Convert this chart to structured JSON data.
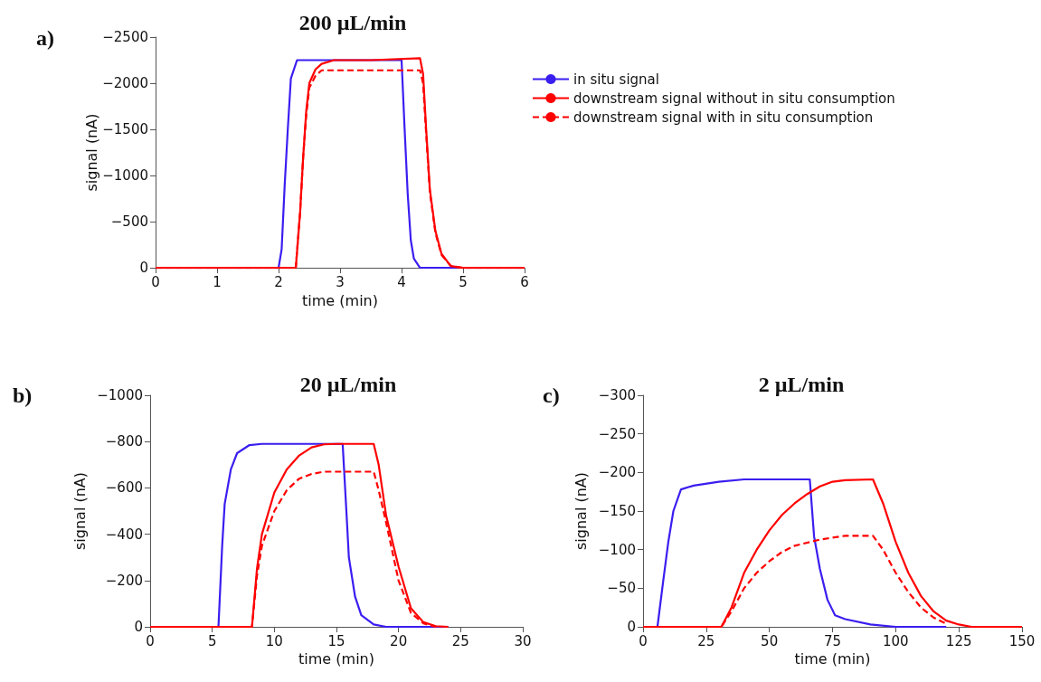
{
  "chart_data": [
    {
      "type": "line",
      "title": "200 µL/min",
      "xlabel": "time (min)",
      "ylabel": "signal (nA)",
      "annotations": [
        "a)"
      ],
      "xlim": [
        0,
        6
      ],
      "xticks": [
        0,
        1,
        2,
        3,
        4,
        5,
        6
      ],
      "ylim": [
        0,
        -2500
      ],
      "yticks": [
        {
          "value": 0,
          "label": "0"
        },
        {
          "value": -500,
          "label": "−500"
        },
        {
          "value": -1000,
          "label": "−1000"
        },
        {
          "value": -1500,
          "label": "−1500"
        },
        {
          "value": -2000,
          "label": "−2000"
        },
        {
          "value": -2500,
          "label": "−2500"
        }
      ],
      "grid": false,
      "legend": "right",
      "marker": "none",
      "series": [
        {
          "name": "in situ signal",
          "color": "#3a1ef0",
          "line_style": "solid",
          "x": [
            0,
            2.0,
            2.05,
            2.1,
            2.15,
            2.2,
            2.3,
            2.5,
            4.0,
            4.05,
            4.1,
            4.15,
            4.2,
            4.3,
            4.5,
            6
          ],
          "values": [
            0,
            0,
            -200,
            -900,
            -1500,
            -2050,
            -2250,
            -2250,
            -2250,
            -1500,
            -800,
            -300,
            -100,
            0,
            0,
            0
          ]
        },
        {
          "name": "downstream signal without in situ consumption",
          "color": "#ff0000",
          "line_style": "solid",
          "x": [
            0,
            2.28,
            2.35,
            2.4,
            2.45,
            2.5,
            2.6,
            2.7,
            2.9,
            3.5,
            4.3,
            4.35,
            4.4,
            4.46,
            4.55,
            4.65,
            4.8,
            5.0,
            6
          ],
          "values": [
            0,
            0,
            -600,
            -1200,
            -1700,
            -2000,
            -2150,
            -2210,
            -2250,
            -2250,
            -2270,
            -2100,
            -1500,
            -850,
            -400,
            -150,
            -20,
            0,
            0
          ]
        },
        {
          "name": "downstream signal with in situ consumption",
          "color": "#ff0000",
          "line_style": "dashed",
          "x": [
            0,
            2.28,
            2.35,
            2.4,
            2.45,
            2.5,
            2.6,
            2.7,
            4.3,
            4.35,
            4.4,
            4.46,
            4.55,
            4.65,
            4.8,
            5.0,
            6
          ],
          "values": [
            0,
            0,
            -600,
            -1200,
            -1650,
            -1950,
            -2080,
            -2140,
            -2140,
            -2000,
            -1450,
            -820,
            -380,
            -140,
            -20,
            0,
            0
          ]
        }
      ]
    },
    {
      "type": "line",
      "title": "20 µL/min",
      "xlabel": "time (min)",
      "ylabel": "signal (nA)",
      "annotations": [
        "b)"
      ],
      "xlim": [
        0,
        30
      ],
      "xticks": [
        0,
        5,
        10,
        15,
        20,
        25,
        30
      ],
      "ylim": [
        0,
        -1000
      ],
      "yticks": [
        {
          "value": 0,
          "label": "0"
        },
        {
          "value": -200,
          "label": "−200"
        },
        {
          "value": -400,
          "label": "−400"
        },
        {
          "value": -600,
          "label": "−600"
        },
        {
          "value": -800,
          "label": "−800"
        },
        {
          "value": -1000,
          "label": "−1000"
        }
      ],
      "grid": false,
      "marker": "none",
      "series": [
        {
          "color": "#3a1ef0",
          "line_style": "solid",
          "x": [
            0,
            5.5,
            5.8,
            6.0,
            6.5,
            7,
            8,
            9,
            15.5,
            15.8,
            16,
            16.5,
            17,
            18,
            19,
            24
          ],
          "values": [
            0,
            0,
            -350,
            -530,
            -680,
            -750,
            -785,
            -790,
            -790,
            -500,
            -300,
            -130,
            -50,
            -10,
            0,
            0
          ]
        },
        {
          "color": "#ff0000",
          "line_style": "solid",
          "x": [
            0,
            8.2,
            8.6,
            9,
            10,
            11,
            12,
            13,
            14,
            15,
            18,
            18.4,
            19,
            20,
            21,
            22,
            23,
            24
          ],
          "values": [
            0,
            0,
            -250,
            -400,
            -580,
            -680,
            -740,
            -775,
            -788,
            -790,
            -790,
            -700,
            -480,
            -260,
            -80,
            -20,
            -3,
            0
          ]
        },
        {
          "color": "#ff0000",
          "line_style": "dashed",
          "x": [
            0,
            8.2,
            8.6,
            9,
            10,
            11,
            12,
            13,
            14,
            18,
            18.4,
            19,
            20,
            21,
            22,
            23
          ],
          "values": [
            0,
            0,
            -220,
            -350,
            -500,
            -590,
            -640,
            -660,
            -670,
            -670,
            -590,
            -450,
            -200,
            -60,
            -15,
            0
          ]
        }
      ]
    },
    {
      "type": "line",
      "title": "2 µL/min",
      "xlabel": "time (min)",
      "ylabel": "signal (nA)",
      "annotations": [
        "c)"
      ],
      "xlim": [
        0,
        150
      ],
      "xticks": [
        0,
        25,
        50,
        75,
        100,
        125,
        150
      ],
      "ylim": [
        0,
        -300
      ],
      "yticks": [
        {
          "value": 0,
          "label": "0"
        },
        {
          "value": -50,
          "label": "−50"
        },
        {
          "value": -100,
          "label": "−100"
        },
        {
          "value": -150,
          "label": "−150"
        },
        {
          "value": -200,
          "label": "−200"
        },
        {
          "value": -250,
          "label": "−250"
        },
        {
          "value": -300,
          "label": "−300"
        }
      ],
      "grid": false,
      "marker": "none",
      "series": [
        {
          "color": "#3a1ef0",
          "line_style": "solid",
          "x": [
            0,
            5.7,
            8,
            10,
            12,
            15,
            20,
            30,
            40,
            66,
            67.7,
            70,
            73,
            76,
            80,
            90,
            100,
            120
          ],
          "values": [
            0,
            0,
            -60,
            -110,
            -150,
            -178,
            -183,
            -188,
            -191,
            -191,
            -117,
            -75,
            -35,
            -15,
            -10,
            -3,
            0,
            0
          ]
        },
        {
          "color": "#ff0000",
          "line_style": "solid",
          "x": [
            0,
            31,
            35,
            40,
            45,
            50,
            55,
            60,
            65,
            70,
            75,
            80,
            91,
            95,
            100,
            105,
            110,
            115,
            120,
            125,
            130,
            150
          ],
          "values": [
            0,
            0,
            -25,
            -70,
            -100,
            -125,
            -145,
            -160,
            -172,
            -182,
            -188,
            -190,
            -191,
            -160,
            -110,
            -70,
            -40,
            -20,
            -8,
            -3,
            0,
            0
          ]
        },
        {
          "color": "#ff0000",
          "line_style": "dashed",
          "x": [
            0,
            31,
            35,
            40,
            45,
            50,
            55,
            60,
            70,
            80,
            91,
            95,
            100,
            105,
            110,
            115,
            120
          ],
          "values": [
            0,
            0,
            -20,
            -50,
            -70,
            -85,
            -97,
            -105,
            -113,
            -118,
            -118,
            -100,
            -70,
            -45,
            -25,
            -12,
            -4
          ]
        }
      ]
    }
  ]
}
